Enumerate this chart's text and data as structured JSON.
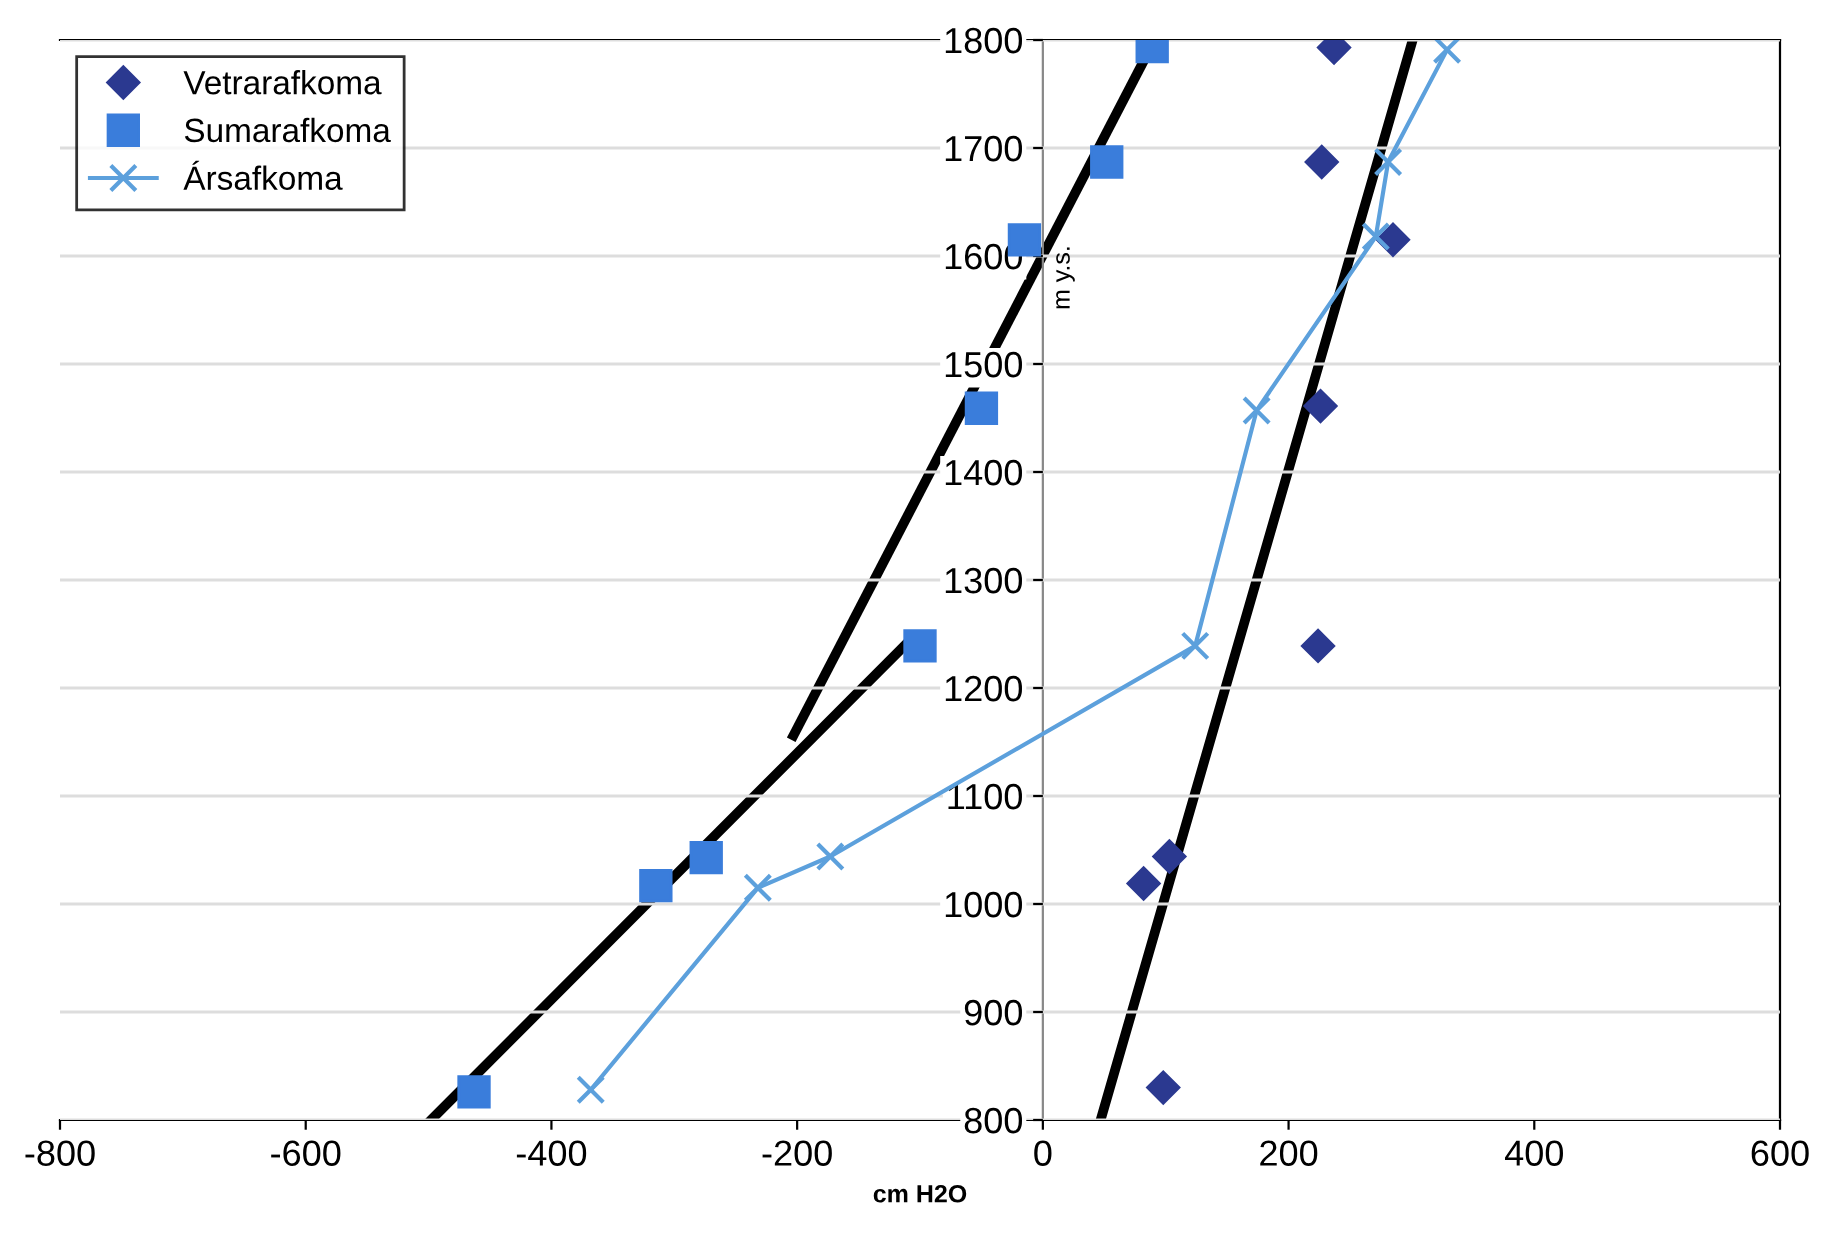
{
  "chart_data": {
    "type": "scatter",
    "xlabel": "cm H2O",
    "ylabel": "m y.s.",
    "xlim": [
      -800,
      600
    ],
    "xticks": [
      -800,
      -600,
      -400,
      -200,
      0,
      200,
      400,
      600
    ],
    "ylim": [
      800,
      1800
    ],
    "yticks": [
      800,
      900,
      1000,
      1100,
      1200,
      1300,
      1400,
      1500,
      1600,
      1700,
      1800
    ],
    "grid": "y",
    "legend": "top left",
    "series": [
      {
        "name": "Vetrarafkoma",
        "marker": "diamond",
        "color": "#2b3990",
        "x": [
          98,
          82,
          103,
          224,
          226,
          285,
          227,
          237
        ],
        "values": [
          830,
          1019,
          1044,
          1239,
          1461,
          1615,
          1687,
          1793
        ]
      },
      {
        "name": "Sumarafkoma",
        "marker": "square",
        "color": "#3a7ddb",
        "x": [
          -463,
          -315,
          -274,
          -100,
          -50,
          -15,
          52,
          89
        ],
        "values": [
          826,
          1017,
          1043,
          1239,
          1459,
          1615,
          1687,
          1794
        ]
      },
      {
        "name": "Ársafkoma",
        "type": "line",
        "marker": "cross",
        "color": "#5ca0dc",
        "x": [
          -368,
          -232,
          -173,
          124,
          174,
          271,
          281,
          329
        ],
        "values": [
          828,
          1015,
          1044,
          1239,
          1457,
          1618,
          1687,
          1791
        ]
      },
      {
        "type": "line",
        "marker": "none",
        "color": "#000000",
        "x": [
          -498,
          -111
        ],
        "values": [
          800,
          1241
        ]
      },
      {
        "type": "line",
        "marker": "none",
        "color": "#000000",
        "x": [
          -203,
          85
        ],
        "values": [
          1156,
          1787
        ]
      },
      {
        "type": "line",
        "marker": "none",
        "color": "#000000",
        "x": [
          47,
          300
        ],
        "values": [
          800,
          1796
        ]
      }
    ]
  }
}
